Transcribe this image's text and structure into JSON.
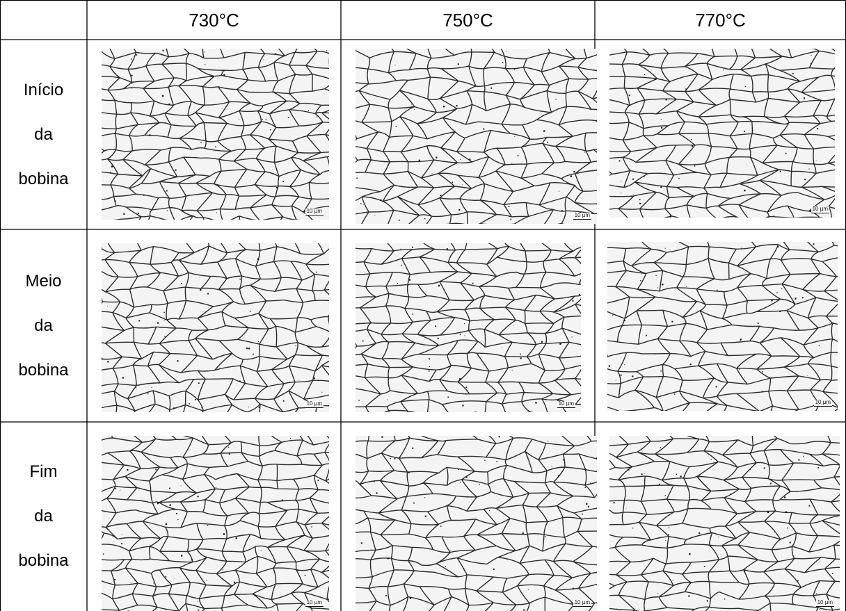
{
  "columns": [
    "730°C",
    "750°C",
    "770°C"
  ],
  "rows": [
    {
      "label_lines": [
        "Início",
        "da",
        "bobina"
      ]
    },
    {
      "label_lines": [
        "Meio",
        "da",
        "bobina"
      ]
    },
    {
      "label_lines": [
        "Fim",
        "da",
        "bobina"
      ]
    }
  ],
  "scale_bar": "10 µm",
  "colors": {
    "grid_line": "#000000",
    "grain_boundary": "#2a2a2a",
    "grain_fill": "#f4f4f4"
  }
}
